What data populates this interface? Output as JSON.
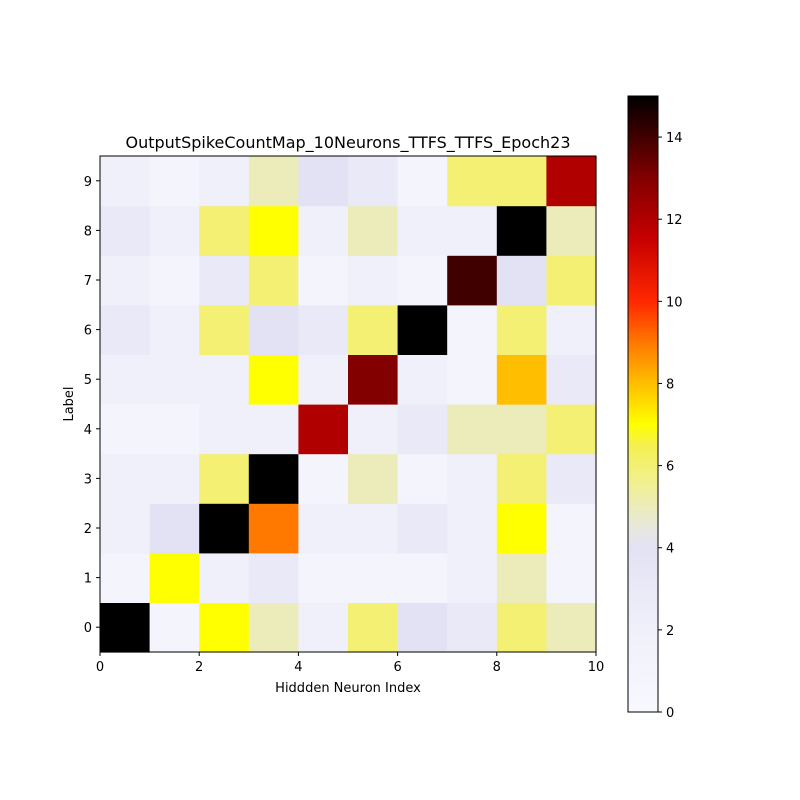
{
  "chart_data": {
    "type": "heatmap",
    "title": "OutputSpikeCountMap_10Neurons_TTFS_TTFS_Epoch23",
    "xlabel": "Hiddden Neuron Index",
    "ylabel": "Label",
    "x_ticks": [
      "0",
      "2",
      "4",
      "6",
      "8",
      "10"
    ],
    "y_ticks": [
      "0",
      "1",
      "2",
      "3",
      "4",
      "5",
      "6",
      "7",
      "8",
      "9"
    ],
    "colorbar_ticks": [
      "0",
      "2",
      "4",
      "6",
      "8",
      "10",
      "12",
      "14"
    ],
    "xlim": [
      0,
      10
    ],
    "colorbar_range": [
      0,
      15
    ],
    "colormap": "hot_r",
    "rows": [
      0,
      1,
      2,
      3,
      4,
      5,
      6,
      7,
      8,
      9
    ],
    "matrix": [
      [
        15,
        1,
        7,
        5,
        2,
        6,
        4,
        3,
        6,
        5
      ],
      [
        1,
        7,
        2,
        3,
        1,
        1,
        1,
        2,
        5,
        1
      ],
      [
        2,
        4,
        15,
        9,
        2,
        2,
        3,
        2,
        7,
        1
      ],
      [
        2,
        2,
        6,
        15,
        1,
        5,
        1,
        2,
        6,
        3
      ],
      [
        1,
        1,
        2,
        2,
        12,
        2,
        3,
        5,
        5,
        6
      ],
      [
        2,
        2,
        2,
        7,
        2,
        13,
        2,
        1,
        8,
        3
      ],
      [
        3,
        2,
        6,
        4,
        3,
        6,
        15,
        1,
        6,
        2
      ],
      [
        2,
        1,
        3,
        6,
        1,
        2,
        1,
        14,
        4,
        6
      ],
      [
        3,
        2,
        6,
        7,
        2,
        5,
        2,
        2,
        15,
        5
      ],
      [
        2,
        1,
        2,
        5,
        4,
        3,
        1,
        6,
        6,
        12
      ]
    ]
  }
}
